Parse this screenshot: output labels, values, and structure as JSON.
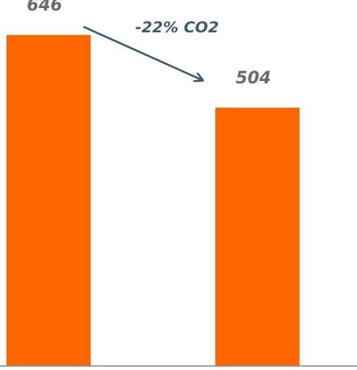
{
  "chart_data": {
    "type": "bar",
    "categories": [
      "",
      ""
    ],
    "values": [
      646,
      504
    ],
    "ylim": [
      0,
      700
    ],
    "grid": false,
    "legend": "none",
    "bar_color": "#ff6600",
    "label_color": "#6b6b6b",
    "axis_color": "#888888",
    "annotation": {
      "text": "-22% CO2",
      "color": "#3d5a6e"
    }
  }
}
